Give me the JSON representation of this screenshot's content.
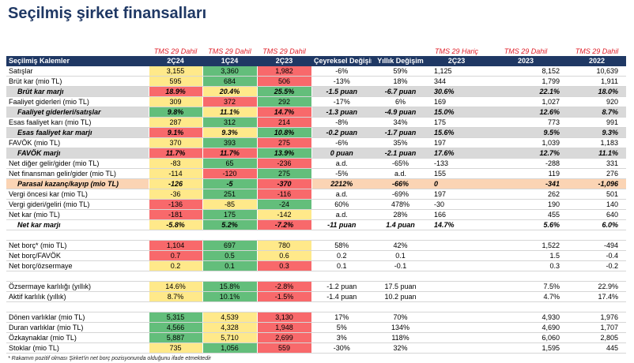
{
  "header": {
    "title": "Seçilmiş şirket finansalları"
  },
  "table": {
    "group_labels": [
      "TMS 29 Dahil",
      "TMS 29 Dahil",
      "TMS 29 Dahil",
      null,
      null,
      "TMS 29 Hariç",
      "TMS 29 Dahil",
      "TMS 29 Dahil"
    ],
    "columns": [
      "Seçilmiş Kalemler",
      "2Ç24",
      "1Ç24",
      "2Ç23",
      "Çeyreksel Değişim",
      "Yıllık Değişim",
      "2Ç23",
      "2023",
      "2022"
    ],
    "heat_colors": {
      "g": "#63be7b",
      "y": "#ffe98a",
      "r": "#f8696b"
    },
    "sections": [
      [
        {
          "label": "Satışlar",
          "cells": [
            "3,155",
            "3,360",
            "1,982",
            "-6%",
            "59%",
            "1,125",
            "8,152",
            "10,639"
          ],
          "heat": [
            "y",
            "g",
            "r"
          ]
        },
        {
          "label": "Brüt kar (mio TL)",
          "cells": [
            "595",
            "684",
            "506",
            "-13%",
            "18%",
            "344",
            "1,799",
            "1,911"
          ],
          "heat": [
            "y",
            "g",
            "r"
          ]
        },
        {
          "label": "Brüt kar marjı",
          "cells": [
            "18.9%",
            "20.4%",
            "25.5%",
            "-1.5 puan",
            "-6.7 puan",
            "30.6%",
            "22.1%",
            "18.0%"
          ],
          "heat": [
            "r",
            "y",
            "g"
          ],
          "bg": "#d9d9d9",
          "emphasis": true
        },
        {
          "label": "Faaliyet giderleri (mio TL)",
          "cells": [
            "309",
            "372",
            "292",
            "-17%",
            "6%",
            "169",
            "1,027",
            "920"
          ],
          "heat": [
            "y",
            "r",
            "g"
          ]
        },
        {
          "label": "Faaliyet giderleri/satışlar",
          "cells": [
            "9.8%",
            "11.1%",
            "14.7%",
            "-1.3 puan",
            "-4.9 puan",
            "15.0%",
            "12.6%",
            "8.7%"
          ],
          "heat": [
            "g",
            "y",
            "r"
          ],
          "bg": "#d9d9d9",
          "emphasis": true
        },
        {
          "label": "Esas faaliyet karı (mio TL)",
          "cells": [
            "287",
            "312",
            "214",
            "-8%",
            "34%",
            "175",
            "773",
            "991"
          ],
          "heat": [
            "y",
            "g",
            "r"
          ]
        },
        {
          "label": "Esas faaliyet kar marjı",
          "cells": [
            "9.1%",
            "9.3%",
            "10.8%",
            "-0.2 puan",
            "-1.7 puan",
            "15.6%",
            "9.5%",
            "9.3%"
          ],
          "heat": [
            "r",
            "y",
            "g"
          ],
          "bg": "#d9d9d9",
          "emphasis": true
        },
        {
          "label": "FAVÖK (mio TL)",
          "cells": [
            "370",
            "393",
            "275",
            "-6%",
            "35%",
            "197",
            "1,039",
            "1,183"
          ],
          "heat": [
            "y",
            "g",
            "r"
          ]
        },
        {
          "label": "FAVÖK marjı",
          "cells": [
            "11.7%",
            "11.7%",
            "13.9%",
            "0 puan",
            "-2.1 puan",
            "17.6%",
            "12.7%",
            "11.1%"
          ],
          "heat": [
            "r",
            "r",
            "g"
          ],
          "bg": "#d9d9d9",
          "emphasis": true
        },
        {
          "label": "Net diğer gelir/gider (mio TL)",
          "cells": [
            "-83",
            "65",
            "-236",
            "a.d.",
            "-65%",
            "-133",
            "-288",
            "331"
          ],
          "heat": [
            "y",
            "g",
            "r"
          ]
        },
        {
          "label": "Net finansman gelir/gider (mio TL)",
          "cells": [
            "-114",
            "-120",
            "275",
            "-5%",
            "a.d.",
            "155",
            "119",
            "276"
          ],
          "heat": [
            "y",
            "r",
            "g"
          ]
        },
        {
          "label": "Parasal kazanç/kayıp (mio TL)",
          "cells": [
            "-126",
            "-5",
            "-370",
            "2212%",
            "-66%",
            "0",
            "-341",
            "-1,096"
          ],
          "heat": [
            "y",
            "g",
            "r"
          ],
          "bg": "#fbd4b4",
          "emphasis": true
        },
        {
          "label": "Vergi öncesi kar (mio TL)",
          "cells": [
            "-36",
            "251",
            "-116",
            "a.d.",
            "-69%",
            "197",
            "262",
            "501"
          ],
          "heat": [
            "y",
            "g",
            "r"
          ]
        },
        {
          "label": "Vergi gideri/geliri (mio TL)",
          "cells": [
            "-136",
            "-85",
            "-24",
            "60%",
            "478%",
            "-30",
            "190",
            "140"
          ],
          "heat": [
            "r",
            "y",
            "g"
          ]
        },
        {
          "label": "Net kar (mio TL)",
          "cells": [
            "-181",
            "175",
            "-142",
            "a.d.",
            "28%",
            "166",
            "455",
            "640"
          ],
          "heat": [
            "r",
            "g",
            "y"
          ]
        },
        {
          "label": "Net kar marjı",
          "cells": [
            "-5.8%",
            "5.2%",
            "-7.2%",
            "-11 puan",
            "1.4 puan",
            "14.7%",
            "5.6%",
            "6.0%"
          ],
          "heat": [
            "y",
            "g",
            "r"
          ],
          "emphasis": true
        }
      ],
      [
        {
          "label": "Net borç* (mio TL)",
          "cells": [
            "1,104",
            "697",
            "780",
            "58%",
            "42%",
            null,
            "1,522",
            "-494"
          ],
          "heat": [
            "r",
            "g",
            "y"
          ]
        },
        {
          "label": "Net borç/FAVÖK",
          "cells": [
            "0.7",
            "0.5",
            "0.6",
            "0.2",
            "0.1",
            null,
            "1.5",
            "-0.4"
          ],
          "heat": [
            "r",
            "g",
            "y"
          ]
        },
        {
          "label": "Net borç/özsermaye",
          "cells": [
            "0.2",
            "0.1",
            "0.3",
            "0.1",
            "-0.1",
            null,
            "0.3",
            "-0.2"
          ],
          "heat": [
            "y",
            "g",
            "r"
          ]
        }
      ],
      [
        {
          "label": "Özsermaye karlılığı (yıllık)",
          "cells": [
            "14.6%",
            "15.8%",
            "-2.8%",
            "-1.2 puan",
            "17.5 puan",
            null,
            "7.5%",
            "22.9%"
          ],
          "heat": [
            "y",
            "g",
            "r"
          ]
        },
        {
          "label": "Aktif karlılık (yıllık)",
          "cells": [
            "8.7%",
            "10.1%",
            "-1.5%",
            "-1.4 puan",
            "10.2 puan",
            null,
            "4.7%",
            "17.4%"
          ],
          "heat": [
            "y",
            "g",
            "r"
          ]
        }
      ],
      [
        {
          "label": "Dönen varlıklar (mio TL)",
          "cells": [
            "5,315",
            "4,539",
            "3,130",
            "17%",
            "70%",
            null,
            "4,930",
            "1,976"
          ],
          "heat": [
            "g",
            "y",
            "r"
          ]
        },
        {
          "label": "Duran varlıklar (mio TL)",
          "cells": [
            "4,566",
            "4,328",
            "1,948",
            "5%",
            "134%",
            null,
            "4,690",
            "1,707"
          ],
          "heat": [
            "g",
            "y",
            "r"
          ]
        },
        {
          "label": "Özkaynaklar (mio TL)",
          "cells": [
            "5,887",
            "5,710",
            "2,699",
            "3%",
            "118%",
            null,
            "6,060",
            "2,805"
          ],
          "heat": [
            "g",
            "y",
            "r"
          ]
        },
        {
          "label": "Stoklar (mio TL)",
          "cells": [
            "735",
            "1,056",
            "559",
            "-30%",
            "32%",
            null,
            "1,595",
            "445"
          ],
          "heat": [
            "y",
            "g",
            "r"
          ]
        }
      ]
    ],
    "footnote": "* Rakamın pozitif olması Şirket'in net borç pozisyonunda olduğunu ifade etmektedir"
  }
}
